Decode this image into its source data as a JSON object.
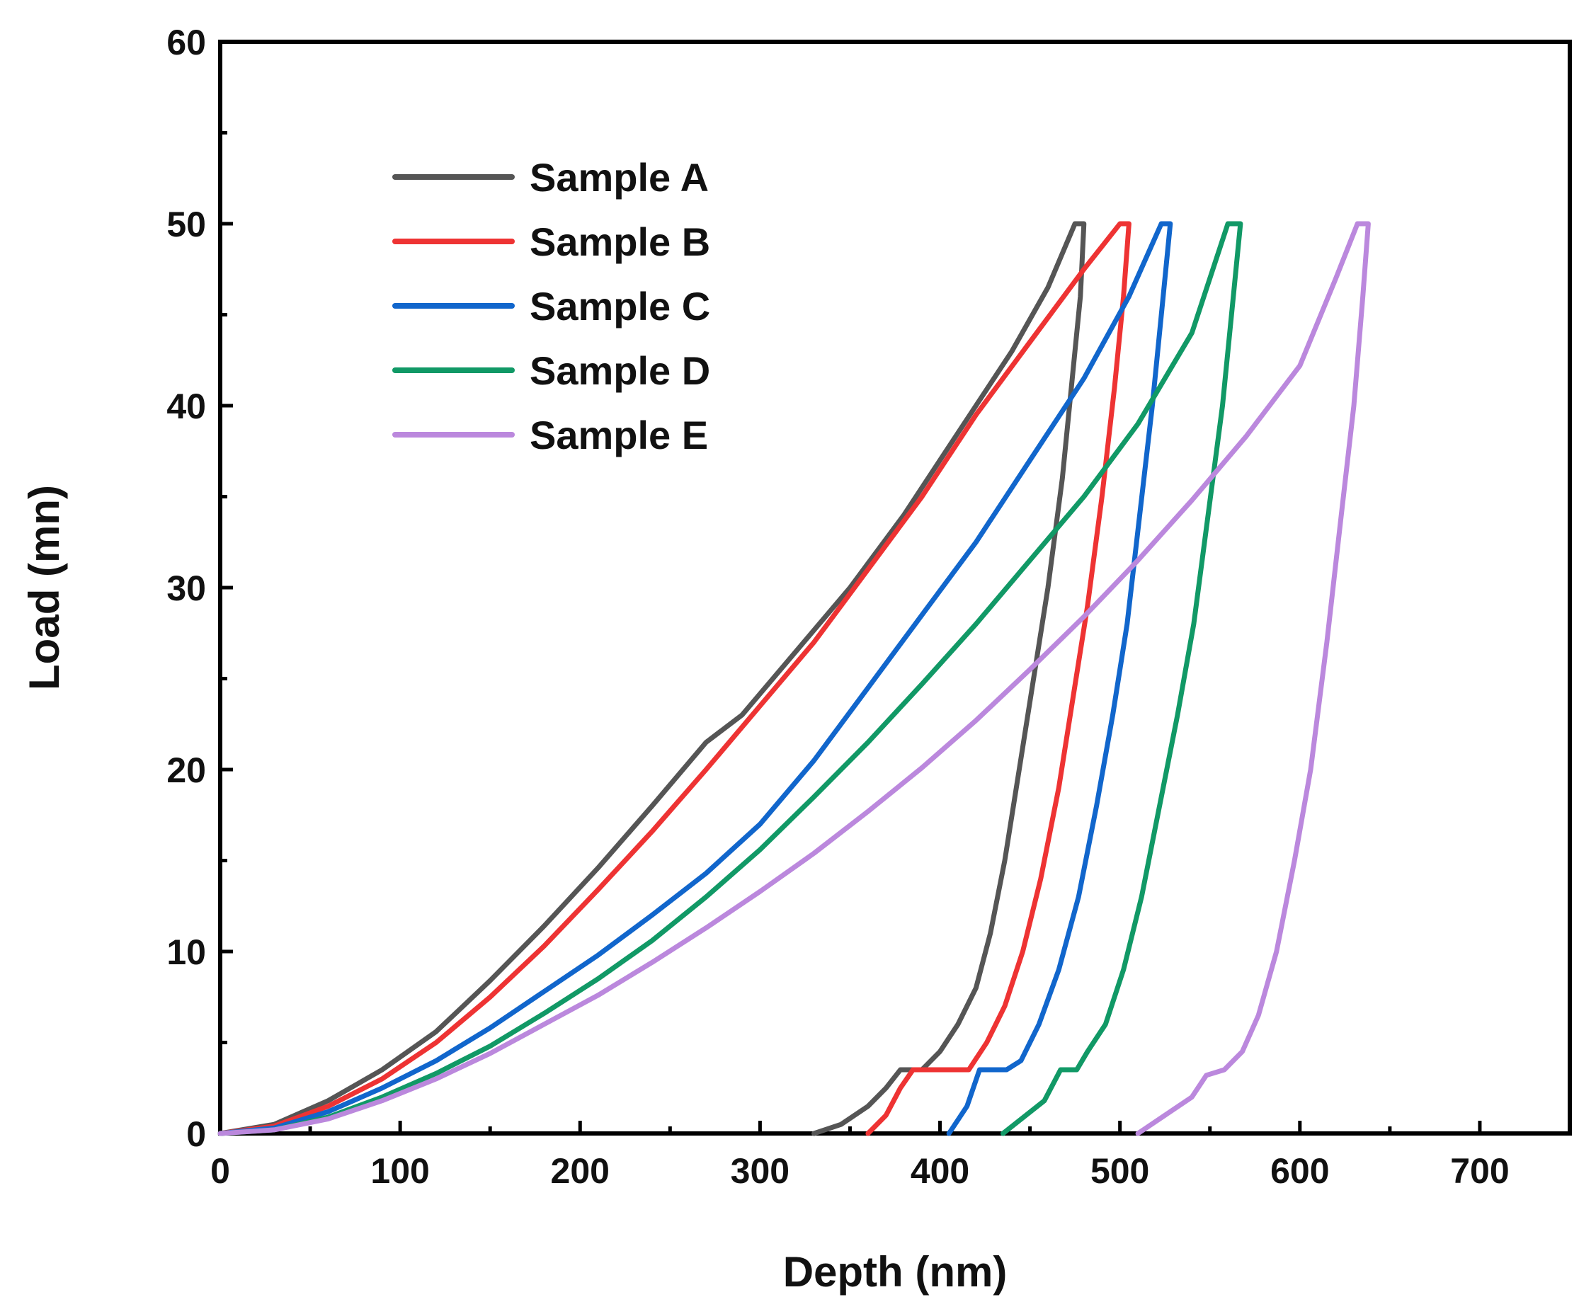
{
  "chart_data": {
    "type": "line",
    "title": "",
    "xlabel": "Depth (nm)",
    "ylabel": "Load (mn)",
    "xlim": [
      0,
      750
    ],
    "ylim": [
      0,
      60
    ],
    "xticks": [
      0,
      100,
      200,
      300,
      400,
      500,
      600,
      700
    ],
    "xtick_labels": [
      "0",
      "100",
      "200",
      "300",
      "400",
      "500",
      "600",
      "700"
    ],
    "yticks": [
      0,
      10,
      20,
      30,
      40,
      50,
      60
    ],
    "ytick_labels": [
      "0",
      "10",
      "20",
      "30",
      "40",
      "50",
      "60"
    ],
    "grid": false,
    "legend_position": "top-left",
    "series": [
      {
        "name": "Sample A",
        "color": "#555555",
        "points": [
          [
            0,
            0
          ],
          [
            30,
            0.5
          ],
          [
            60,
            1.8
          ],
          [
            90,
            3.5
          ],
          [
            120,
            5.6
          ],
          [
            150,
            8.4
          ],
          [
            180,
            11.4
          ],
          [
            210,
            14.6
          ],
          [
            240,
            18
          ],
          [
            270,
            21.5
          ],
          [
            290,
            23
          ],
          [
            320,
            26.5
          ],
          [
            350,
            30
          ],
          [
            380,
            34
          ],
          [
            410,
            38.5
          ],
          [
            440,
            43
          ],
          [
            460,
            46.5
          ],
          [
            475,
            50
          ],
          [
            480,
            50
          ],
          [
            478,
            46
          ],
          [
            474,
            42
          ],
          [
            468,
            36
          ],
          [
            460,
            30
          ],
          [
            452,
            25
          ],
          [
            444,
            20
          ],
          [
            436,
            15
          ],
          [
            428,
            11
          ],
          [
            420,
            8
          ],
          [
            410,
            6
          ],
          [
            400,
            4.5
          ],
          [
            390,
            3.5
          ],
          [
            378,
            3.5
          ],
          [
            370,
            2.5
          ],
          [
            360,
            1.5
          ],
          [
            345,
            0.5
          ],
          [
            330,
            0
          ]
        ]
      },
      {
        "name": "Sample B",
        "color": "#ee3333",
        "points": [
          [
            0,
            0
          ],
          [
            30,
            0.4
          ],
          [
            60,
            1.5
          ],
          [
            90,
            3
          ],
          [
            120,
            5
          ],
          [
            150,
            7.5
          ],
          [
            180,
            10.3
          ],
          [
            210,
            13.4
          ],
          [
            240,
            16.6
          ],
          [
            270,
            20
          ],
          [
            300,
            23.5
          ],
          [
            330,
            27
          ],
          [
            360,
            31
          ],
          [
            390,
            35
          ],
          [
            420,
            39.5
          ],
          [
            450,
            43.5
          ],
          [
            480,
            47.5
          ],
          [
            500,
            50
          ],
          [
            505,
            50
          ],
          [
            502,
            46
          ],
          [
            497,
            41
          ],
          [
            490,
            35
          ],
          [
            482,
            29
          ],
          [
            474,
            24
          ],
          [
            466,
            19
          ],
          [
            456,
            14
          ],
          [
            446,
            10
          ],
          [
            436,
            7
          ],
          [
            426,
            5
          ],
          [
            416,
            3.5
          ],
          [
            385,
            3.5
          ],
          [
            378,
            2.5
          ],
          [
            370,
            1
          ],
          [
            360,
            0
          ]
        ]
      },
      {
        "name": "Sample C",
        "color": "#1166cc",
        "points": [
          [
            0,
            0
          ],
          [
            30,
            0.3
          ],
          [
            60,
            1.2
          ],
          [
            90,
            2.5
          ],
          [
            120,
            4
          ],
          [
            150,
            5.8
          ],
          [
            180,
            7.8
          ],
          [
            210,
            9.8
          ],
          [
            240,
            12
          ],
          [
            270,
            14.3
          ],
          [
            300,
            17
          ],
          [
            330,
            20.5
          ],
          [
            360,
            24.5
          ],
          [
            390,
            28.5
          ],
          [
            420,
            32.5
          ],
          [
            450,
            37
          ],
          [
            480,
            41.5
          ],
          [
            505,
            46
          ],
          [
            523,
            50
          ],
          [
            528,
            50
          ],
          [
            524,
            46
          ],
          [
            518,
            40
          ],
          [
            511,
            34
          ],
          [
            504,
            28
          ],
          [
            496,
            23
          ],
          [
            487,
            18
          ],
          [
            477,
            13
          ],
          [
            466,
            9
          ],
          [
            455,
            6
          ],
          [
            445,
            4
          ],
          [
            437,
            3.5
          ],
          [
            422,
            3.5
          ],
          [
            415,
            1.5
          ],
          [
            405,
            0
          ]
        ]
      },
      {
        "name": "Sample D",
        "color": "#119966",
        "points": [
          [
            0,
            0
          ],
          [
            30,
            0.2
          ],
          [
            60,
            0.9
          ],
          [
            90,
            2
          ],
          [
            120,
            3.3
          ],
          [
            150,
            4.8
          ],
          [
            180,
            6.6
          ],
          [
            210,
            8.5
          ],
          [
            240,
            10.6
          ],
          [
            270,
            13
          ],
          [
            300,
            15.6
          ],
          [
            330,
            18.5
          ],
          [
            360,
            21.5
          ],
          [
            390,
            24.7
          ],
          [
            420,
            28
          ],
          [
            450,
            31.5
          ],
          [
            480,
            35
          ],
          [
            510,
            39
          ],
          [
            540,
            44
          ],
          [
            560,
            50
          ],
          [
            567,
            50
          ],
          [
            563,
            46
          ],
          [
            557,
            40
          ],
          [
            549,
            34
          ],
          [
            541,
            28
          ],
          [
            532,
            23
          ],
          [
            522,
            18
          ],
          [
            512,
            13
          ],
          [
            502,
            9
          ],
          [
            492,
            6
          ],
          [
            482,
            4.5
          ],
          [
            476,
            3.5
          ],
          [
            467,
            3.5
          ],
          [
            458,
            1.8
          ],
          [
            435,
            0
          ]
        ]
      },
      {
        "name": "Sample E",
        "color": "#bb88dd",
        "points": [
          [
            0,
            0
          ],
          [
            30,
            0.2
          ],
          [
            60,
            0.8
          ],
          [
            90,
            1.8
          ],
          [
            120,
            3
          ],
          [
            150,
            4.4
          ],
          [
            180,
            6
          ],
          [
            210,
            7.6
          ],
          [
            240,
            9.4
          ],
          [
            270,
            11.3
          ],
          [
            300,
            13.3
          ],
          [
            330,
            15.4
          ],
          [
            360,
            17.7
          ],
          [
            390,
            20.1
          ],
          [
            420,
            22.7
          ],
          [
            450,
            25.5
          ],
          [
            480,
            28.4
          ],
          [
            510,
            31.5
          ],
          [
            540,
            34.8
          ],
          [
            570,
            38.3
          ],
          [
            600,
            42.2
          ],
          [
            620,
            47
          ],
          [
            632,
            50
          ],
          [
            638,
            50
          ],
          [
            635,
            46
          ],
          [
            630,
            40
          ],
          [
            623,
            34
          ],
          [
            615,
            27
          ],
          [
            606,
            20
          ],
          [
            597,
            15
          ],
          [
            587,
            10
          ],
          [
            577,
            6.5
          ],
          [
            568,
            4.5
          ],
          [
            558,
            3.5
          ],
          [
            548,
            3.2
          ],
          [
            540,
            2
          ],
          [
            525,
            1
          ],
          [
            510,
            0
          ]
        ]
      }
    ]
  }
}
